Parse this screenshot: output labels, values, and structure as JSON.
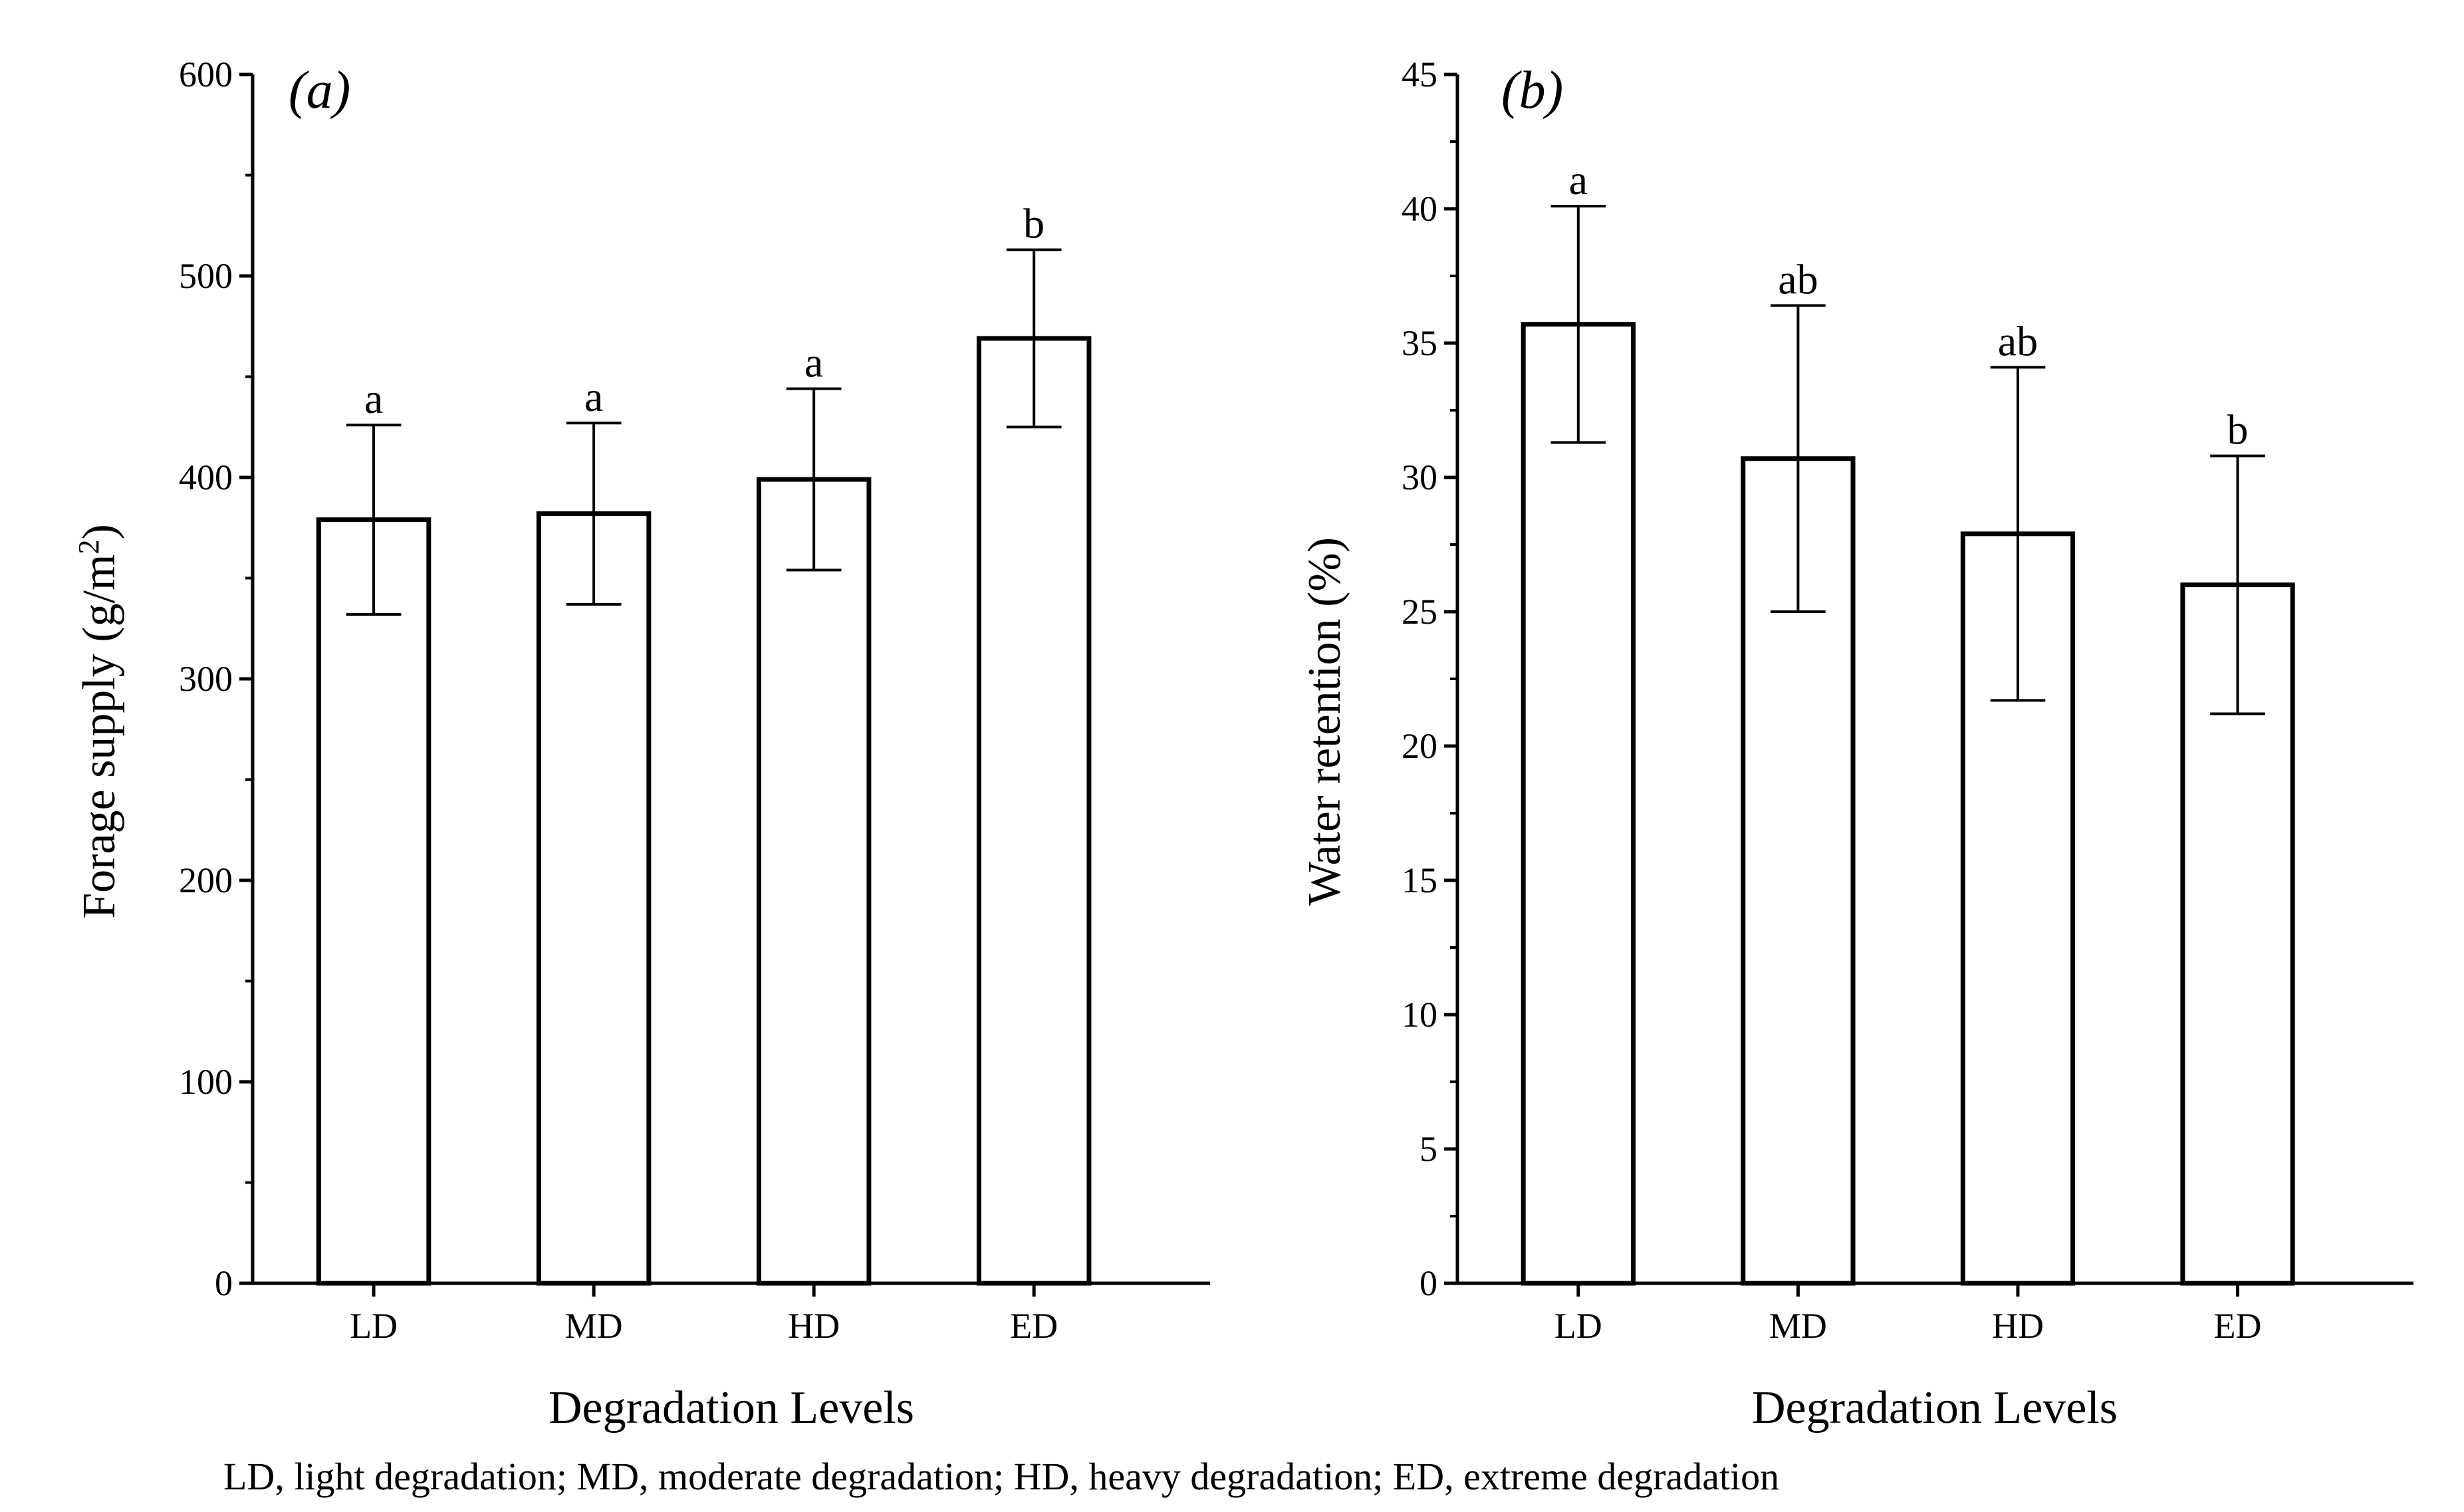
{
  "chart_data": [
    {
      "type": "bar",
      "panel_label": "(a)",
      "categories": [
        "LD",
        "MD",
        "HD",
        "ED"
      ],
      "values": [
        379,
        382,
        399,
        469
      ],
      "errors": [
        47,
        45,
        45,
        44
      ],
      "significance": [
        "a",
        "a",
        "a",
        "b"
      ],
      "xlabel": "Degradation Levels",
      "ylabel_main": "Forage supply (g/m",
      "ylabel_sup": "2",
      "ylabel_end": ")",
      "ylim": [
        0,
        600
      ],
      "yticks": [
        0,
        100,
        200,
        300,
        400,
        500,
        600
      ],
      "grid": false
    },
    {
      "type": "bar",
      "panel_label": "(b)",
      "categories": [
        "LD",
        "MD",
        "HD",
        "ED"
      ],
      "values": [
        35.7,
        30.7,
        27.9,
        26.0
      ],
      "errors": [
        4.4,
        5.7,
        6.2,
        4.8
      ],
      "significance": [
        "a",
        "ab",
        "ab",
        "b"
      ],
      "xlabel": "Degradation Levels",
      "ylabel": "Water retention (%)",
      "ylim": [
        0,
        45
      ],
      "yticks": [
        0,
        5,
        10,
        15,
        20,
        25,
        30,
        35,
        40,
        45
      ],
      "grid": false
    }
  ],
  "caption": "LD, light degradation; MD, moderate degradation; HD, heavy degradation; ED, extreme degradation"
}
